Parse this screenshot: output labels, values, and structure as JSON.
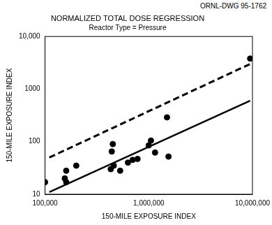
{
  "chart_data": {
    "type": "scatter",
    "annotation": "ORNL-DWG 95-1762",
    "title": "NORMALIZED TOTAL DOSE REGRESSION",
    "subtitle": "Reactor Type = Pressure",
    "x_label": "150-MILE EXPOSURE INDEX",
    "y_label": "150-MILE EXPOSURE INDEX",
    "log": true,
    "grid": false,
    "xlim": [
      100000,
      10000000
    ],
    "xticks": [
      {
        "value": 100000,
        "label": "100,000"
      },
      {
        "value": 1000000,
        "label": "1,000,000"
      },
      {
        "value": 10000000,
        "label": "10,000,000"
      }
    ],
    "ylim": [
      10,
      10000
    ],
    "yticks": [
      10,
      100,
      1000,
      {
        "value": 10000,
        "label": "10,000"
      }
    ],
    "series": [
      {
        "type": "scatter",
        "marker": "circle",
        "color": "#000000",
        "x": [
          100000,
          155000,
          160000,
          160000,
          200000,
          430000,
          440000,
          450000,
          460000,
          530000,
          630000,
          700000,
          780000,
          1000000,
          1050000,
          1150000,
          1500000,
          1550000,
          9500000
        ],
        "values": [
          17,
          20,
          17,
          28,
          35,
          30,
          65,
          90,
          35,
          28,
          40,
          45,
          47,
          85,
          105,
          62,
          290,
          52,
          3800
        ]
      },
      {
        "type": "line",
        "line_style": "solid",
        "color": "#000000",
        "x": [
          110000,
          9500000
        ],
        "values": [
          11,
          600
        ]
      },
      {
        "type": "line",
        "line_style": "dashed",
        "color": "#000000",
        "x": [
          110000,
          9500000
        ],
        "values": [
          50,
          3000
        ]
      }
    ]
  }
}
